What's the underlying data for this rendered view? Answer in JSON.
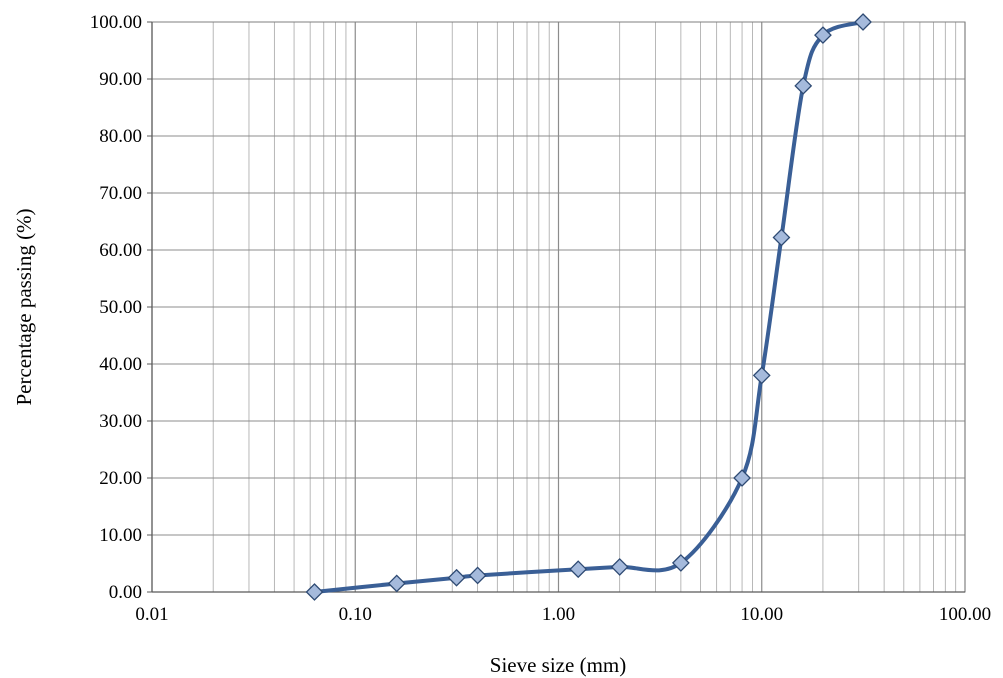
{
  "chart_data": {
    "type": "scatter",
    "xlabel": "Sieve size (mm)",
    "ylabel": "Percentage passing (%)",
    "xscale": "log",
    "xlim": [
      0.01,
      100
    ],
    "ylim": [
      0,
      100
    ],
    "x_ticks": [
      "0.01",
      "0.10",
      "1.00",
      "10.00",
      "100.00"
    ],
    "y_ticks": [
      "0.00",
      "10.00",
      "20.00",
      "30.00",
      "40.00",
      "50.00",
      "60.00",
      "70.00",
      "80.00",
      "90.00",
      "100.00"
    ],
    "grid": true,
    "legend": "none",
    "series": [
      {
        "x": [
          0.063,
          0.16,
          0.315,
          0.4,
          1.25,
          2,
          4,
          8,
          10,
          12.5,
          16,
          20,
          31.5
        ],
        "y": [
          0.0,
          1.5,
          2.5,
          2.9,
          4.0,
          4.4,
          5.1,
          20.0,
          38.0,
          62.2,
          88.8,
          97.7,
          100.0
        ]
      }
    ],
    "line_color": "#3A5F96",
    "marker_fill": "#A5BADC",
    "marker_stroke": "#2E4A73",
    "grid_color": "#A6A6A6"
  }
}
